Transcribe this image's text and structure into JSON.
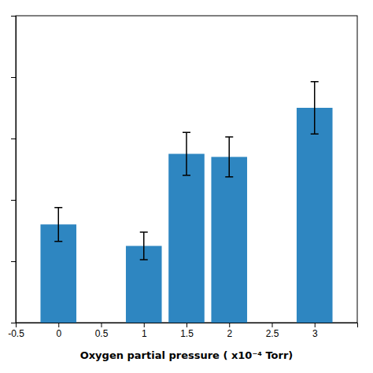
{
  "chart_data": {
    "type": "bar",
    "x": [
      0,
      1,
      1.5,
      2,
      3
    ],
    "values": [
      3.2,
      2.5,
      5.5,
      5.4,
      7.0
    ],
    "errors": [
      0.55,
      0.45,
      0.7,
      0.65,
      0.85
    ],
    "color": "#2e86c1",
    "x_label": "Oxygen partial pressure ( x10⁻⁴ Torr)",
    "xlim": [
      -0.5,
      3.5
    ],
    "ylim": [
      0,
      10
    ],
    "xticks": [
      -0.5,
      0,
      0.5,
      1,
      1.5,
      2,
      2.5,
      3
    ],
    "yticks": [
      0,
      2,
      4,
      6,
      8,
      10
    ],
    "tick_labels": "x",
    "grid": false
  }
}
